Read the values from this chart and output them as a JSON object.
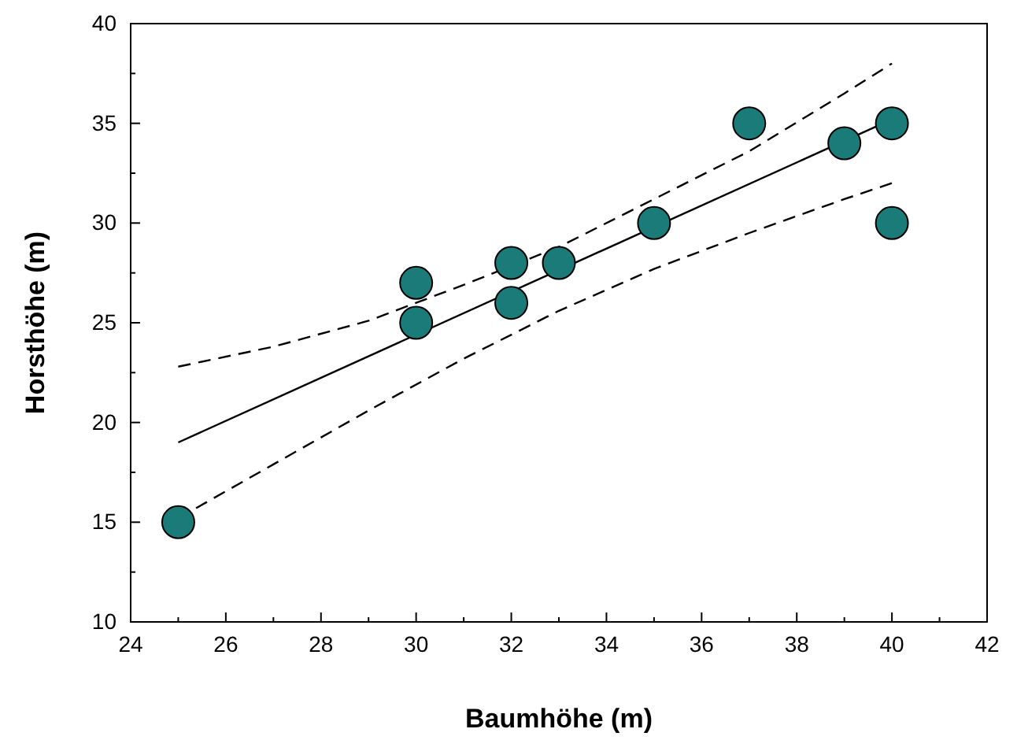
{
  "chart_data": {
    "type": "scatter",
    "xlabel": "Baumhöhe (m)",
    "ylabel": "Horsthöhe (m)",
    "xlim": [
      24,
      42
    ],
    "ylim": [
      10,
      40
    ],
    "xticks": [
      24,
      {
        "value": 25,
        "label": null
      },
      26,
      {
        "value": 27,
        "label": null
      },
      28,
      {
        "value": 29,
        "label": null
      },
      30,
      {
        "value": 31,
        "label": null
      },
      32,
      {
        "value": 33,
        "label": null
      },
      34,
      {
        "value": 35,
        "label": null
      },
      36,
      {
        "value": 37,
        "label": null
      },
      38,
      {
        "value": 39,
        "label": null
      },
      40,
      {
        "value": 41,
        "label": null
      },
      42
    ],
    "yticks": [
      10,
      {
        "value": 12.5,
        "label": null
      },
      15,
      {
        "value": 17.5,
        "label": null
      },
      20,
      {
        "value": 22.5,
        "label": null
      },
      25,
      {
        "value": 27.5,
        "label": null
      },
      30,
      {
        "value": 32.5,
        "label": null
      },
      35,
      {
        "value": 37.5,
        "label": null
      },
      40
    ],
    "grid": false,
    "series": [
      {
        "type": "line",
        "color": "#000000",
        "line_style": "solid",
        "marker": "none",
        "x": [
          25,
          40
        ],
        "values": [
          19,
          35.2
        ]
      },
      {
        "type": "line",
        "color": "#000000",
        "line_style": "dashed",
        "marker": "none",
        "x": [
          25,
          27,
          29,
          31,
          33,
          35,
          37,
          39,
          40
        ],
        "values": [
          22.8,
          23.8,
          25.1,
          26.9,
          28.8,
          31.2,
          33.6,
          36.5,
          38
        ]
      },
      {
        "type": "line",
        "color": "#000000",
        "line_style": "dashed",
        "marker": "none",
        "x": [
          25,
          27,
          29,
          31,
          33,
          35,
          37,
          39,
          40
        ],
        "values": [
          15.2,
          17.9,
          20.6,
          23.2,
          25.6,
          27.7,
          29.5,
          31.2,
          32
        ]
      },
      {
        "color": "#1b7b78",
        "marker": "circle",
        "x": [
          25,
          30,
          30,
          32,
          32,
          33,
          35,
          37,
          39,
          40,
          40
        ],
        "values": [
          15,
          27,
          25,
          28,
          26,
          28,
          30,
          35,
          34,
          35,
          30
        ]
      }
    ]
  }
}
